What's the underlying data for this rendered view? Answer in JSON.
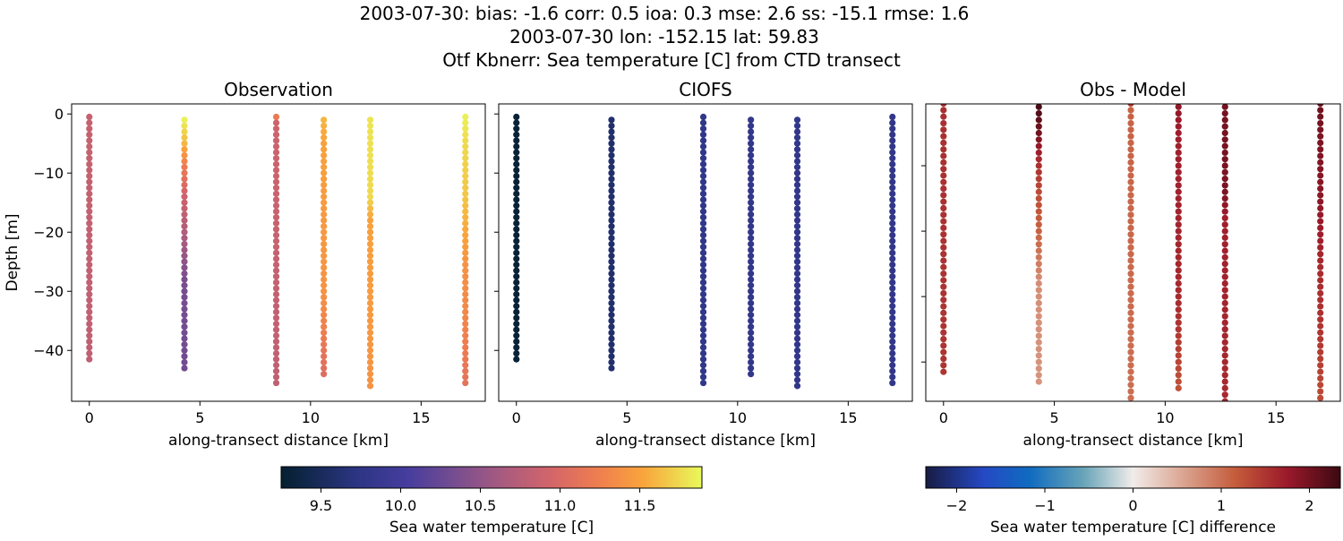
{
  "title_lines": [
    "2003-07-30: bias: -1.6  corr: 0.5  ioa: 0.3  mse: 2.6  ss: -15.1  rmse: 1.6",
    "2003-07-30 lon: -152.15 lat: 59.83",
    "Otf Kbnerr: Sea temperature [C] from CTD transect"
  ],
  "chart_data": [
    {
      "type": "scatter",
      "title": "Observation",
      "xlabel": "along-transect distance [km]",
      "ylabel": "Depth [m]",
      "xlim": [
        -0.8,
        17.9
      ],
      "ylim": [
        -48.6,
        1.7
      ],
      "xticks": [
        0,
        5,
        10,
        15
      ],
      "yticks": [
        0,
        -10,
        -20,
        -30,
        -40
      ],
      "colormap": "thermal",
      "color_field": "obs"
    },
    {
      "type": "scatter",
      "title": "CIOFS",
      "xlabel": "along-transect distance [km]",
      "ylabel": "",
      "xlim": [
        -0.8,
        17.9
      ],
      "ylim": [
        -48.6,
        1.7
      ],
      "xticks": [
        0,
        5,
        10,
        15
      ],
      "yticks": [
        0,
        -10,
        -20,
        -30,
        -40
      ],
      "colormap": "thermal",
      "color_field": "model"
    },
    {
      "type": "scatter",
      "title": "Obs - Model",
      "xlabel": "along-transect distance [km]",
      "ylabel": "",
      "xlim": [
        -0.8,
        17.9
      ],
      "ylim": [
        -46.0,
        -0.55
      ],
      "xticks": [
        0,
        5,
        10,
        15
      ],
      "yticks": [
        -10,
        -20,
        -30,
        -40
      ],
      "colormap": "balance",
      "color_field": "diff"
    }
  ],
  "profiles": [
    {
      "distance_km": 0.0,
      "depth_top": -0.5,
      "depth_bottom": -42,
      "obs": [
        [
          -0.5,
          10.85
        ],
        [
          -42,
          10.8
        ]
      ],
      "model": [
        [
          -0.5,
          9.3
        ],
        [
          -42,
          9.3
        ]
      ]
    },
    {
      "distance_km": 4.3,
      "depth_top": -1,
      "depth_bottom": -43,
      "obs": [
        [
          -1,
          11.85
        ],
        [
          -5,
          11.6
        ],
        [
          -9,
          11.2
        ],
        [
          -14,
          10.9
        ],
        [
          -20,
          10.7
        ],
        [
          -28,
          10.35
        ],
        [
          -43,
          10.3
        ]
      ],
      "model": [
        [
          -1,
          9.6
        ],
        [
          -43,
          9.6
        ]
      ]
    },
    {
      "distance_km": 8.45,
      "depth_top": -0.5,
      "depth_bottom": -46,
      "obs": [
        [
          -0.5,
          11.2
        ],
        [
          -1.5,
          10.9
        ],
        [
          -46,
          10.8
        ]
      ],
      "model": [
        [
          -0.5,
          9.8
        ],
        [
          -46,
          9.8
        ]
      ]
    },
    {
      "distance_km": 10.6,
      "depth_top": -1,
      "depth_bottom": -44,
      "obs": [
        [
          -1,
          11.6
        ],
        [
          -5,
          11.5
        ],
        [
          -30,
          11.4
        ],
        [
          -40,
          11.15
        ],
        [
          -44,
          11.05
        ]
      ],
      "model": [
        [
          -1,
          9.8
        ],
        [
          -44,
          9.8
        ]
      ]
    },
    {
      "distance_km": 12.7,
      "depth_top": -1,
      "depth_bottom": -46,
      "obs": [
        [
          -1,
          11.8
        ],
        [
          -14,
          11.75
        ],
        [
          -18,
          11.5
        ],
        [
          -46,
          11.4
        ]
      ],
      "model": [
        [
          -1,
          9.8
        ],
        [
          -46,
          9.8
        ]
      ]
    },
    {
      "distance_km": 17.0,
      "depth_top": -0.5,
      "depth_bottom": -46,
      "obs": [
        [
          -0.5,
          11.85
        ],
        [
          -5,
          11.75
        ],
        [
          -15,
          11.65
        ],
        [
          -25,
          11.4
        ],
        [
          -35,
          11.3
        ],
        [
          -46,
          11.1
        ]
      ],
      "model": [
        [
          -0.5,
          9.8
        ],
        [
          -46,
          9.8
        ]
      ]
    }
  ],
  "colorbars": [
    {
      "label": "Sea water temperature [C]",
      "range": [
        9.25,
        11.89
      ],
      "ticks": [
        "9.5",
        "10.0",
        "10.5",
        "11.0",
        "11.5"
      ],
      "colormap": "thermal"
    },
    {
      "label": "Sea water temperature [C] difference",
      "range": [
        -2.35,
        2.35
      ],
      "ticks": [
        "−2",
        "−1",
        "0",
        "1",
        "2"
      ],
      "colormap": "balance"
    }
  ],
  "colormaps": {
    "thermal": [
      [
        0,
        "#04202f"
      ],
      [
        0.18,
        "#2c3583"
      ],
      [
        0.3,
        "#463d9e"
      ],
      [
        0.42,
        "#7a4e8f"
      ],
      [
        0.52,
        "#a65a80"
      ],
      [
        0.64,
        "#d3656a"
      ],
      [
        0.75,
        "#ee7d50"
      ],
      [
        0.86,
        "#f9a43c"
      ],
      [
        1,
        "#e8fa5b"
      ]
    ],
    "balance": [
      [
        0,
        "#181c43"
      ],
      [
        0.14,
        "#2549c4"
      ],
      [
        0.25,
        "#0f6bc0"
      ],
      [
        0.38,
        "#68a4b8"
      ],
      [
        0.5,
        "#f1ecea"
      ],
      [
        0.62,
        "#dba591"
      ],
      [
        0.75,
        "#c45a3a"
      ],
      [
        0.87,
        "#9c1a2b"
      ],
      [
        1,
        "#3c0912"
      ]
    ]
  }
}
